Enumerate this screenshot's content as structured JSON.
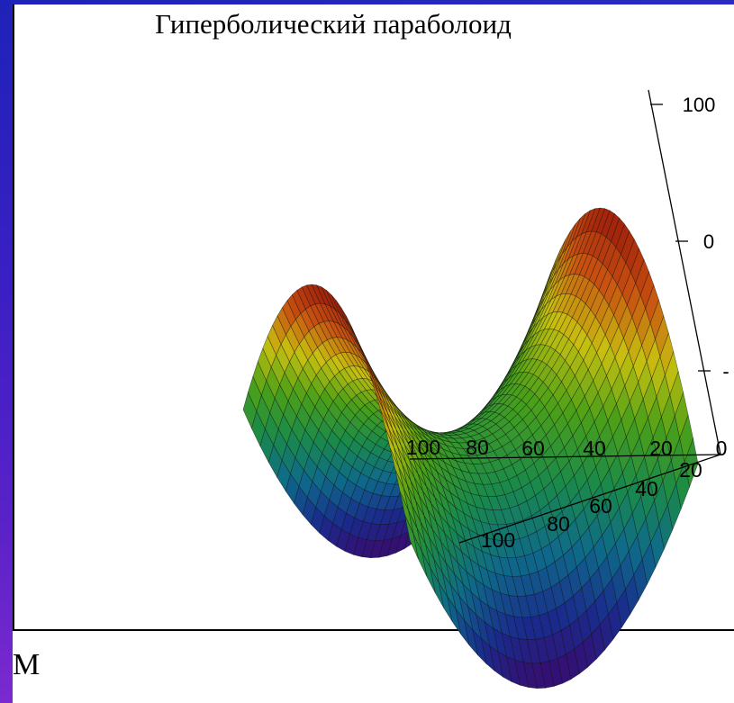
{
  "chart_data": {
    "type": "surface",
    "title": "Гиперболический параболоид",
    "surface": "hyperbolic paraboloid (saddle)",
    "x_ticks": [
      "100",
      "80",
      "60",
      "40",
      "20",
      "0"
    ],
    "y_ticks": [
      "20",
      "40",
      "60",
      "80",
      "100"
    ],
    "z_ticks": [
      "100",
      "0",
      "-"
    ],
    "colormap": [
      "#3a0a6e",
      "#1a2a8c",
      "#0e6a8a",
      "#1a8a4a",
      "#4aa018",
      "#c8c010",
      "#c85010",
      "#9a1a0a"
    ]
  },
  "caption": "М"
}
